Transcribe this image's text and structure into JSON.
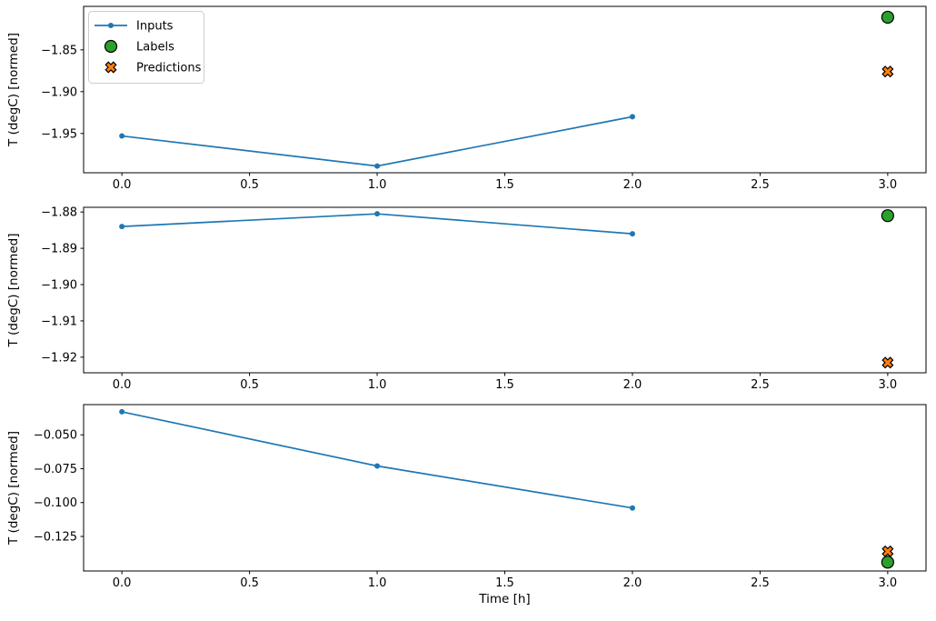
{
  "figure": {
    "background": "#ffffff"
  },
  "palette": {
    "inputs_line": "#1f77b4",
    "labels_fill": "#2ca02c",
    "predictions_fill": "#ff7f0e",
    "marker_edge": "#000000",
    "spine": "#000000",
    "text": "#000000",
    "legend_border": "#cccccc",
    "legend_bg": "#ffffff"
  },
  "legend": {
    "items": [
      {
        "label": "Inputs",
        "marker": "dot-line"
      },
      {
        "label": "Labels",
        "marker": "circle"
      },
      {
        "label": "Predictions",
        "marker": "X"
      }
    ]
  },
  "xlabel": "Time [h]",
  "xlim": [
    -0.15,
    3.15
  ],
  "x_ticks": [
    {
      "v": 0.0,
      "label": "0.0"
    },
    {
      "v": 0.5,
      "label": "0.5"
    },
    {
      "v": 1.0,
      "label": "1.0"
    },
    {
      "v": 1.5,
      "label": "1.5"
    },
    {
      "v": 2.0,
      "label": "2.0"
    },
    {
      "v": 2.5,
      "label": "2.5"
    },
    {
      "v": 3.0,
      "label": "3.0"
    }
  ],
  "chart_data": [
    {
      "type": "line",
      "ylabel": "T (degC) [normed]",
      "ylim": [
        -1.997,
        -1.798
      ],
      "y_ticks": [
        {
          "v": -1.85,
          "label": "−1.85"
        },
        {
          "v": -1.9,
          "label": "−1.90"
        },
        {
          "v": -1.95,
          "label": "−1.95"
        }
      ],
      "series": [
        {
          "name": "Inputs",
          "marker": "dot-line",
          "x": [
            0,
            1,
            2
          ],
          "y": [
            -1.953,
            -1.989,
            -1.93
          ]
        },
        {
          "name": "Predictions",
          "marker": "X",
          "x": [
            3
          ],
          "y": [
            -1.876
          ]
        },
        {
          "name": "Labels",
          "marker": "circle",
          "x": [
            3
          ],
          "y": [
            -1.811
          ]
        }
      ]
    },
    {
      "type": "line",
      "ylabel": "T (degC) [normed]",
      "ylim": [
        -1.9243,
        -1.8787
      ],
      "y_ticks": [
        {
          "v": -1.88,
          "label": "−1.88"
        },
        {
          "v": -1.89,
          "label": "−1.89"
        },
        {
          "v": -1.9,
          "label": "−1.90"
        },
        {
          "v": -1.91,
          "label": "−1.91"
        },
        {
          "v": -1.92,
          "label": "−1.92"
        }
      ],
      "series": [
        {
          "name": "Inputs",
          "marker": "dot-line",
          "x": [
            0,
            1,
            2
          ],
          "y": [
            -1.884,
            -1.8805,
            -1.886
          ]
        },
        {
          "name": "Predictions",
          "marker": "X",
          "x": [
            3
          ],
          "y": [
            -1.9215
          ]
        },
        {
          "name": "Labels",
          "marker": "circle",
          "x": [
            3
          ],
          "y": [
            -1.881
          ]
        }
      ]
    },
    {
      "type": "line",
      "ylabel": "T (degC) [normed]",
      "ylim": [
        -0.1505,
        -0.0277
      ],
      "y_ticks": [
        {
          "v": -0.05,
          "label": "−0.050"
        },
        {
          "v": -0.075,
          "label": "−0.075"
        },
        {
          "v": -0.1,
          "label": "−0.100"
        },
        {
          "v": -0.125,
          "label": "−0.125"
        }
      ],
      "series": [
        {
          "name": "Inputs",
          "marker": "dot-line",
          "x": [
            0,
            1,
            2
          ],
          "y": [
            -0.033,
            -0.073,
            -0.104
          ]
        },
        {
          "name": "Predictions",
          "marker": "X",
          "x": [
            3
          ],
          "y": [
            -0.136
          ]
        },
        {
          "name": "Labels",
          "marker": "circle",
          "x": [
            3
          ],
          "y": [
            -0.144
          ]
        }
      ]
    }
  ]
}
